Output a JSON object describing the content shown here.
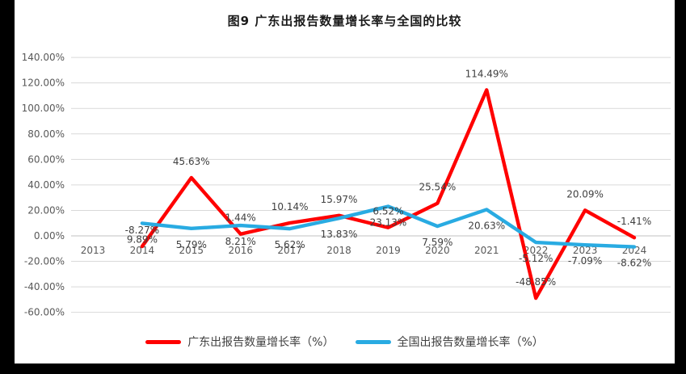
{
  "title": "图9  广东出报告数量增长率与全国的比较",
  "frame_color": "#000000",
  "y_axis": {
    "ticks": [
      "140.00%",
      "120.00%",
      "100.00%",
      "80.00%",
      "60.00%",
      "40.00%",
      "20.00%",
      "0.00%",
      "-20.00%",
      "-40.00%",
      "-60.00%"
    ]
  },
  "chart_data": {
    "type": "line",
    "categories": [
      "2013",
      "2014",
      "2015",
      "2016",
      "2017",
      "2018",
      "2019",
      "2020",
      "2021",
      "2022",
      "2023",
      "2024"
    ],
    "series": [
      {
        "id": "guangdong",
        "name": "广东出报告数量增长率（%）",
        "color": "#FF0000",
        "label_position": "above",
        "values": [
          null,
          -8.27,
          45.63,
          1.44,
          10.14,
          15.97,
          6.52,
          25.54,
          114.49,
          -48.85,
          20.09,
          -1.41
        ],
        "labels": [
          "",
          "-8.27%",
          "45.63%",
          "1.44%",
          "10.14%",
          "15.97%",
          "6.52%",
          "25.54%",
          "114.49%",
          "-48.85%",
          "20.09%",
          "-1.41%"
        ]
      },
      {
        "id": "national",
        "name": "全国出报告数量增长率（%）",
        "color": "#29ABE2",
        "label_position": "below",
        "values": [
          null,
          9.89,
          5.79,
          8.21,
          5.62,
          13.83,
          23.13,
          7.59,
          20.63,
          -5.12,
          -7.09,
          -8.62
        ],
        "labels": [
          "",
          "9.89%",
          "5.79%",
          "8.21%",
          "5.62%",
          "13.83%",
          "23.13%",
          "7.59%",
          "20.63%",
          "-5.12%",
          "-7.09%",
          "-8.62%"
        ]
      }
    ],
    "ylim": [
      -60,
      140
    ],
    "ytick_step": 20,
    "grid": true,
    "legend_position": "bottom",
    "gridline_color": "#D9D9D9",
    "zero_line_color": "#C0C0C0"
  }
}
